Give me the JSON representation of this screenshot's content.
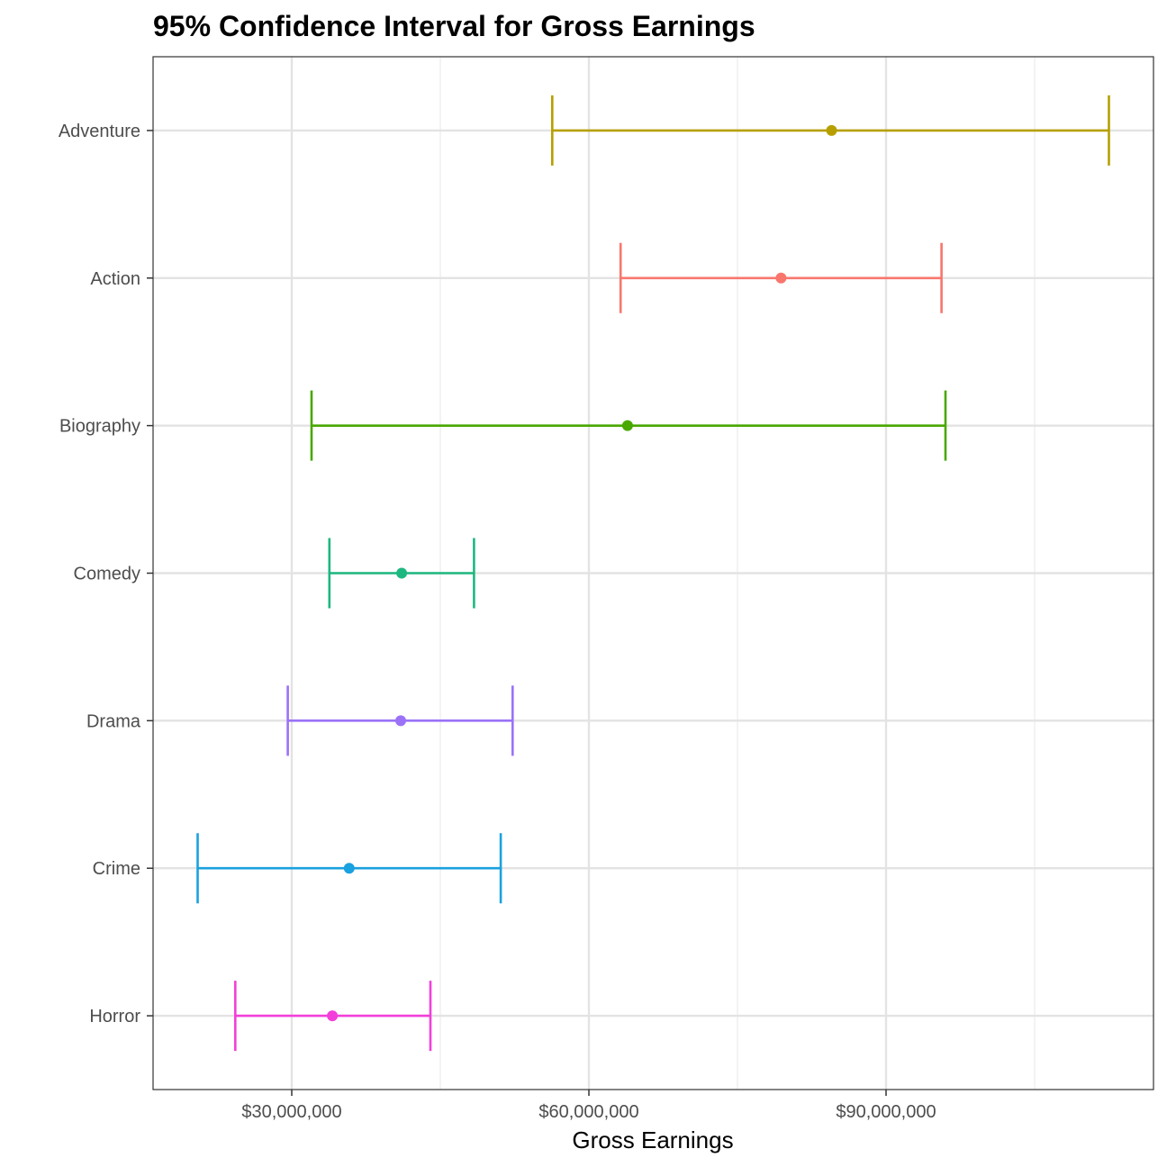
{
  "chart_data": {
    "type": "errorbar",
    "title": "95% Confidence Interval for Gross Earnings",
    "xlabel": "Gross Earnings",
    "ylabel": "",
    "xlim": [
      16000000,
      117000000
    ],
    "x_ticks": [
      30000000,
      60000000,
      90000000
    ],
    "x_tick_labels": [
      "$30,000,000",
      "$60,000,000",
      "$90,000,000"
    ],
    "grid": true,
    "legend": "none",
    "categories": [
      "Adventure",
      "Action",
      "Biography",
      "Comedy",
      "Drama",
      "Crime",
      "Horror"
    ],
    "series": [
      {
        "category": "Adventure",
        "mean": 84500000,
        "lower": 56300000,
        "upper": 112500000,
        "color": "#B79F00"
      },
      {
        "category": "Action",
        "mean": 79400000,
        "lower": 63200000,
        "upper": 95600000,
        "color": "#F8766D"
      },
      {
        "category": "Biography",
        "mean": 63900000,
        "lower": 32000000,
        "upper": 96000000,
        "color": "#48A800"
      },
      {
        "category": "Comedy",
        "mean": 41100000,
        "lower": 33800000,
        "upper": 48400000,
        "color": "#1DB87F"
      },
      {
        "category": "Drama",
        "mean": 41000000,
        "lower": 29600000,
        "upper": 52300000,
        "color": "#9B72F7"
      },
      {
        "category": "Crime",
        "mean": 35800000,
        "lower": 20500000,
        "upper": 51100000,
        "color": "#1AA1DF"
      },
      {
        "category": "Horror",
        "mean": 34100000,
        "lower": 24300000,
        "upper": 44000000,
        "color": "#F23FDA"
      }
    ]
  }
}
